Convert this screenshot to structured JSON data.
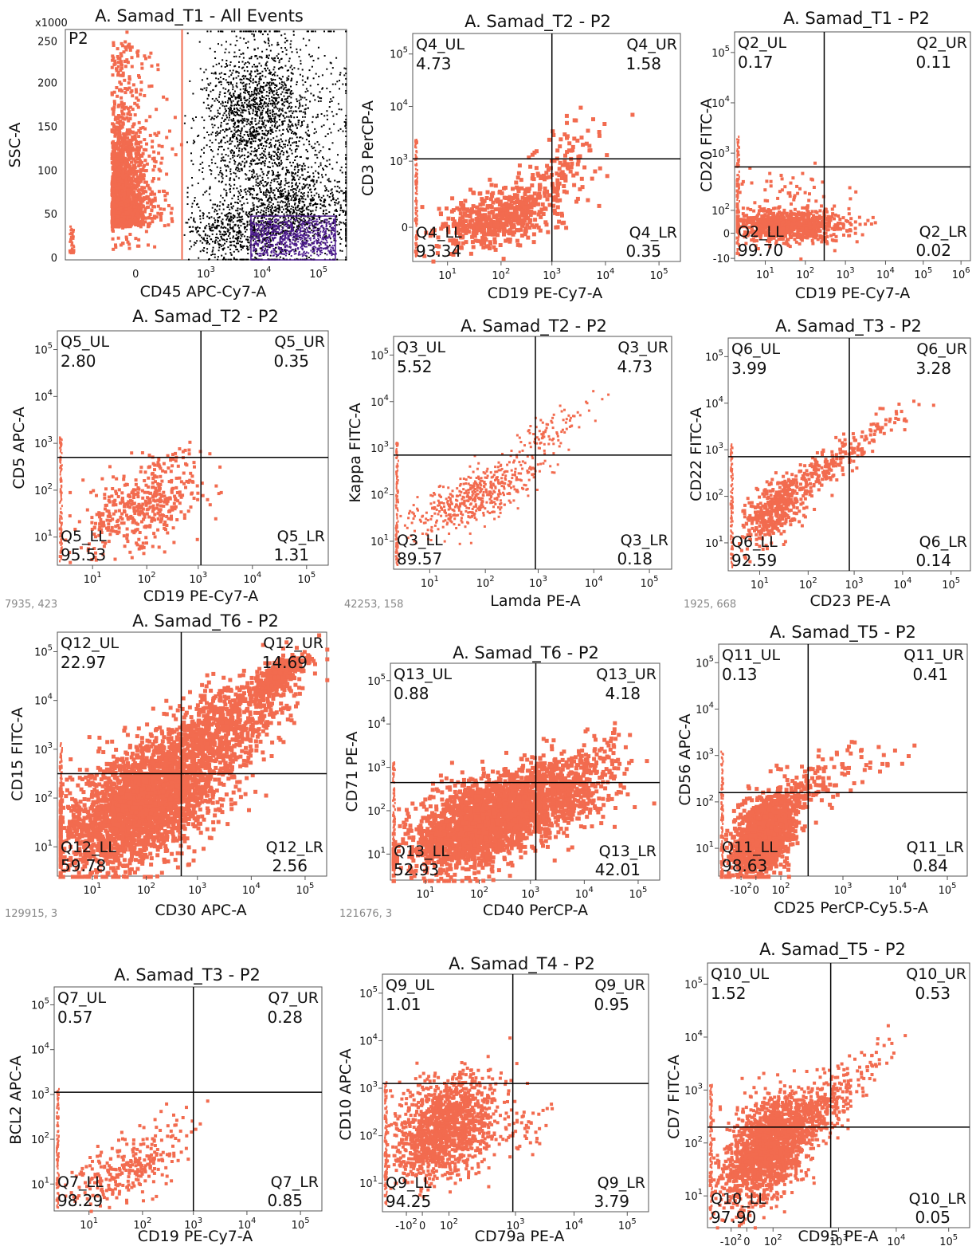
{
  "colors": {
    "events": "#f26b4f",
    "other_events": "#000000",
    "gate_p3": "#4b1a8c",
    "gate_line": "#f26b4f",
    "quadrant_line": "#000000"
  },
  "coords": [
    "7935, 423",
    "42253, 158",
    "1925, 668",
    "129915, 3",
    "121676, 3"
  ],
  "chart_data": [
    {
      "type": "scatter",
      "title": "A. Samad_T1 - All Events",
      "xlabel": "CD45 APC-Cy7-A",
      "ylabel": "SSC-A",
      "y_multiplier": "x1000",
      "gate_label": "P2",
      "gate_x_max": 700,
      "xticks": [
        "0",
        "10",
        "10",
        "10"
      ],
      "xtick_exp": [
        "",
        "3",
        "4",
        "5"
      ],
      "yticks": [
        "0",
        "50",
        "100",
        "150",
        "200",
        "250"
      ],
      "clusters": [
        {
          "name": "P2",
          "color": "#f26b4f",
          "x_range": [
            -300,
            700
          ],
          "y_range": [
            0,
            260
          ]
        },
        {
          "name": "",
          "color": "#000000",
          "x_range": [
            1000,
            150000
          ],
          "y_range": [
            0,
            255
          ]
        },
        {
          "name": "",
          "color": "#4b1a8c",
          "x_range": [
            7000,
            150000
          ],
          "y_range": [
            0,
            50
          ]
        }
      ]
    },
    {
      "type": "scatter",
      "title": "A. Samad_T2 - P2",
      "xlabel": "CD19 PE-Cy7-A",
      "ylabel": "CD3 PerCP-A",
      "quadrant_threshold": {
        "x": 800,
        "y": 1000
      },
      "quadrants": {
        "UL": {
          "label": "Q4_UL",
          "value": "4.73"
        },
        "UR": {
          "label": "Q4_UR",
          "value": "1.58"
        },
        "LL": {
          "label": "Q4_LL",
          "value": "93.34"
        },
        "LR": {
          "label": "Q4_LR",
          "value": "0.35"
        }
      },
      "xticks": [
        "10",
        "10",
        "10",
        "10",
        "10"
      ],
      "xtick_exp": [
        "1",
        "2",
        "3",
        "4",
        "5"
      ],
      "yticks": [
        "0",
        "10",
        "10",
        "10"
      ],
      "ytick_exp": [
        "",
        "3",
        "4",
        "5"
      ]
    },
    {
      "type": "scatter",
      "title": "A. Samad_T1 - P2",
      "xlabel": "CD19 PE-Cy7-A",
      "ylabel": "CD20 FITC-A",
      "quadrant_threshold": {
        "x": 150,
        "y": 500
      },
      "quadrants": {
        "UL": {
          "label": "Q2_UL",
          "value": "0.17"
        },
        "UR": {
          "label": "Q2_UR",
          "value": "0.11"
        },
        "LL": {
          "label": "Q2_LL",
          "value": "99.70"
        },
        "LR": {
          "label": "Q2_LR",
          "value": "0.02"
        }
      },
      "xticks": [
        "10",
        "10",
        "10",
        "10",
        "10",
        "10"
      ],
      "xtick_exp": [
        "1",
        "2",
        "3",
        "4",
        "5",
        "6"
      ],
      "yticks": [
        "-10",
        "0",
        "10",
        "10",
        "10",
        "10"
      ],
      "ytick_exp": [
        "",
        "",
        "2",
        "3",
        "4",
        "5"
      ]
    },
    {
      "type": "scatter",
      "title": "A. Samad_T2 - P2",
      "xlabel": "CD19 PE-Cy7-A",
      "ylabel": "CD5 APC-A",
      "quadrant_threshold": {
        "x": 900,
        "y": 500
      },
      "quadrants": {
        "UL": {
          "label": "Q5_UL",
          "value": "2.80"
        },
        "UR": {
          "label": "Q5_UR",
          "value": "0.35"
        },
        "LL": {
          "label": "Q5_LL",
          "value": "95.53"
        },
        "LR": {
          "label": "Q5_LR",
          "value": "1.31"
        }
      },
      "xticks": [
        "10",
        "10",
        "10",
        "10",
        "10"
      ],
      "xtick_exp": [
        "1",
        "2",
        "3",
        "4",
        "5"
      ],
      "yticks": [
        "10",
        "10",
        "10",
        "10",
        "10"
      ],
      "ytick_exp": [
        "1",
        "2",
        "3",
        "4",
        "5"
      ]
    },
    {
      "type": "scatter",
      "title": "A. Samad_T2 - P2",
      "xlabel": "Lamda PE-A",
      "ylabel": "Kappa FITC-A",
      "quadrant_threshold": {
        "x": 700,
        "y": 900
      },
      "quadrants": {
        "UL": {
          "label": "Q3_UL",
          "value": "5.52"
        },
        "UR": {
          "label": "Q3_UR",
          "value": "4.73"
        },
        "LL": {
          "label": "Q3_LL",
          "value": "89.57"
        },
        "LR": {
          "label": "Q3_LR",
          "value": "0.18"
        }
      },
      "xticks": [
        "10",
        "10",
        "10",
        "10",
        "10"
      ],
      "xtick_exp": [
        "1",
        "2",
        "3",
        "4",
        "5"
      ],
      "yticks": [
        "10",
        "10",
        "10",
        "10",
        "10"
      ],
      "ytick_exp": [
        "1",
        "2",
        "3",
        "4",
        "5"
      ]
    },
    {
      "type": "scatter",
      "title": "A. Samad_T3 - P2",
      "xlabel": "CD23 PE-A",
      "ylabel": "CD22 FITC-A",
      "quadrant_threshold": {
        "x": 700,
        "y": 900
      },
      "quadrants": {
        "UL": {
          "label": "Q6_UL",
          "value": "3.99"
        },
        "UR": {
          "label": "Q6_UR",
          "value": "3.28"
        },
        "LL": {
          "label": "Q6_LL",
          "value": "92.59"
        },
        "LR": {
          "label": "Q6_LR",
          "value": "0.14"
        }
      },
      "xticks": [
        "10",
        "10",
        "10",
        "10",
        "10"
      ],
      "xtick_exp": [
        "1",
        "2",
        "3",
        "4",
        "5"
      ],
      "yticks": [
        "10",
        "10",
        "10",
        "10",
        "10"
      ],
      "ytick_exp": [
        "1",
        "2",
        "3",
        "4",
        "5"
      ]
    },
    {
      "type": "scatter",
      "title": "A. Samad_T6 - P2",
      "xlabel": "CD30 APC-A",
      "ylabel": "CD15 FITC-A",
      "quadrant_threshold": {
        "x": 200,
        "y": 300
      },
      "quadrants": {
        "UL": {
          "label": "Q12_UL",
          "value": "22.97"
        },
        "UR": {
          "label": "Q12_UR",
          "value": "14.69"
        },
        "LL": {
          "label": "Q12_LL",
          "value": "59.78"
        },
        "LR": {
          "label": "Q12_LR",
          "value": "2.56"
        }
      },
      "xticks": [
        "10",
        "10",
        "10",
        "10",
        "10"
      ],
      "xtick_exp": [
        "1",
        "2",
        "3",
        "4",
        "5"
      ],
      "yticks": [
        "10",
        "10",
        "10",
        "10",
        "10"
      ],
      "ytick_exp": [
        "1",
        "2",
        "3",
        "4",
        "5"
      ]
    },
    {
      "type": "scatter",
      "title": "A. Samad_T6 - P2",
      "xlabel": "CD40 PerCP-A",
      "ylabel": "CD71 PE-A",
      "quadrant_threshold": {
        "x": 200,
        "y": 300
      },
      "quadrants": {
        "UL": {
          "label": "Q13_UL",
          "value": "0.88"
        },
        "UR": {
          "label": "Q13_UR",
          "value": "4.18"
        },
        "LL": {
          "label": "Q13_LL",
          "value": "52.93"
        },
        "LR": {
          "label": "Q13_LR",
          "value": "42.01"
        }
      },
      "xticks": [
        "10",
        "10",
        "10",
        "10",
        "10"
      ],
      "xtick_exp": [
        "1",
        "2",
        "3",
        "4",
        "5"
      ],
      "yticks": [
        "10",
        "10",
        "10",
        "10",
        "10"
      ],
      "ytick_exp": [
        "1",
        "2",
        "3",
        "4",
        "5"
      ]
    },
    {
      "type": "scatter",
      "title": "A. Samad_T5 - P2",
      "xlabel": "CD25 PerCP-Cy5.5-A",
      "ylabel": "CD56 APC-A",
      "quadrant_threshold": {
        "x": 800,
        "y": 500
      },
      "quadrants": {
        "UL": {
          "label": "Q11_UL",
          "value": "0.13"
        },
        "UR": {
          "label": "Q11_UR",
          "value": "0.41"
        },
        "LL": {
          "label": "Q11_LL",
          "value": "98.63"
        },
        "LR": {
          "label": "Q11_LR",
          "value": "0.84"
        }
      },
      "xticks": [
        "-10",
        "0",
        "10",
        "10",
        "10",
        "10"
      ],
      "xtick_exp": [
        "2",
        "",
        "2",
        "3",
        "4",
        "5"
      ],
      "yticks": [
        "10",
        "10",
        "10",
        "10",
        "10"
      ],
      "ytick_exp": [
        "1",
        "2",
        "3",
        "4",
        "5"
      ]
    },
    {
      "type": "scatter",
      "title": "A. Samad_T3 - P2",
      "xlabel": "CD19 PE-Cy7-A",
      "ylabel": "BCL2 APC-A",
      "quadrant_threshold": {
        "x": 700,
        "y": 1000
      },
      "quadrants": {
        "UL": {
          "label": "Q7_UL",
          "value": "0.57"
        },
        "UR": {
          "label": "Q7_UR",
          "value": "0.28"
        },
        "LL": {
          "label": "Q7_LL",
          "value": "98.29"
        },
        "LR": {
          "label": "Q7_LR",
          "value": "0.85"
        }
      },
      "xticks": [
        "10",
        "10",
        "10",
        "10",
        "10"
      ],
      "xtick_exp": [
        "1",
        "2",
        "3",
        "4",
        "5"
      ],
      "yticks": [
        "10",
        "10",
        "10",
        "10",
        "10"
      ],
      "ytick_exp": [
        "1",
        "2",
        "3",
        "4",
        "5"
      ]
    },
    {
      "type": "scatter",
      "title": "A. Samad_T4 - P2",
      "xlabel": "CD79a PE-A",
      "ylabel": "CD10 APC-A",
      "quadrant_threshold": {
        "x": 1000,
        "y": 800
      },
      "quadrants": {
        "UL": {
          "label": "Q9_UL",
          "value": "1.01"
        },
        "UR": {
          "label": "Q9_UR",
          "value": "0.95"
        },
        "LL": {
          "label": "Q9_LL",
          "value": "94.25"
        },
        "LR": {
          "label": "Q9_LR",
          "value": "3.79"
        }
      },
      "xticks": [
        "-10",
        "0",
        "10",
        "10",
        "10",
        "10"
      ],
      "xtick_exp": [
        "2",
        "",
        "2",
        "3",
        "4",
        "5"
      ],
      "yticks": [
        "10",
        "10",
        "10",
        "10",
        "10"
      ],
      "ytick_exp": [
        "1",
        "2",
        "3",
        "4",
        "5"
      ]
    },
    {
      "type": "scatter",
      "title": "A. Samad_T5 - P2",
      "xlabel": "CD95 PE-A",
      "ylabel": "CD7 FITC-A",
      "quadrant_threshold": {
        "x": 1000,
        "y": 400
      },
      "quadrants": {
        "UL": {
          "label": "Q10_UL",
          "value": "1.52"
        },
        "UR": {
          "label": "Q10_UR",
          "value": "0.53"
        },
        "LL": {
          "label": "Q10_LL",
          "value": "97.90"
        },
        "LR": {
          "label": "Q10_LR",
          "value": "0.05"
        }
      },
      "xticks": [
        "-10",
        "0",
        "10",
        "10",
        "10",
        "10"
      ],
      "xtick_exp": [
        "2",
        "",
        "2",
        "3",
        "4",
        "5"
      ],
      "yticks": [
        "10",
        "10",
        "10",
        "10",
        "10"
      ],
      "ytick_exp": [
        "1",
        "2",
        "3",
        "4",
        "5"
      ]
    }
  ]
}
